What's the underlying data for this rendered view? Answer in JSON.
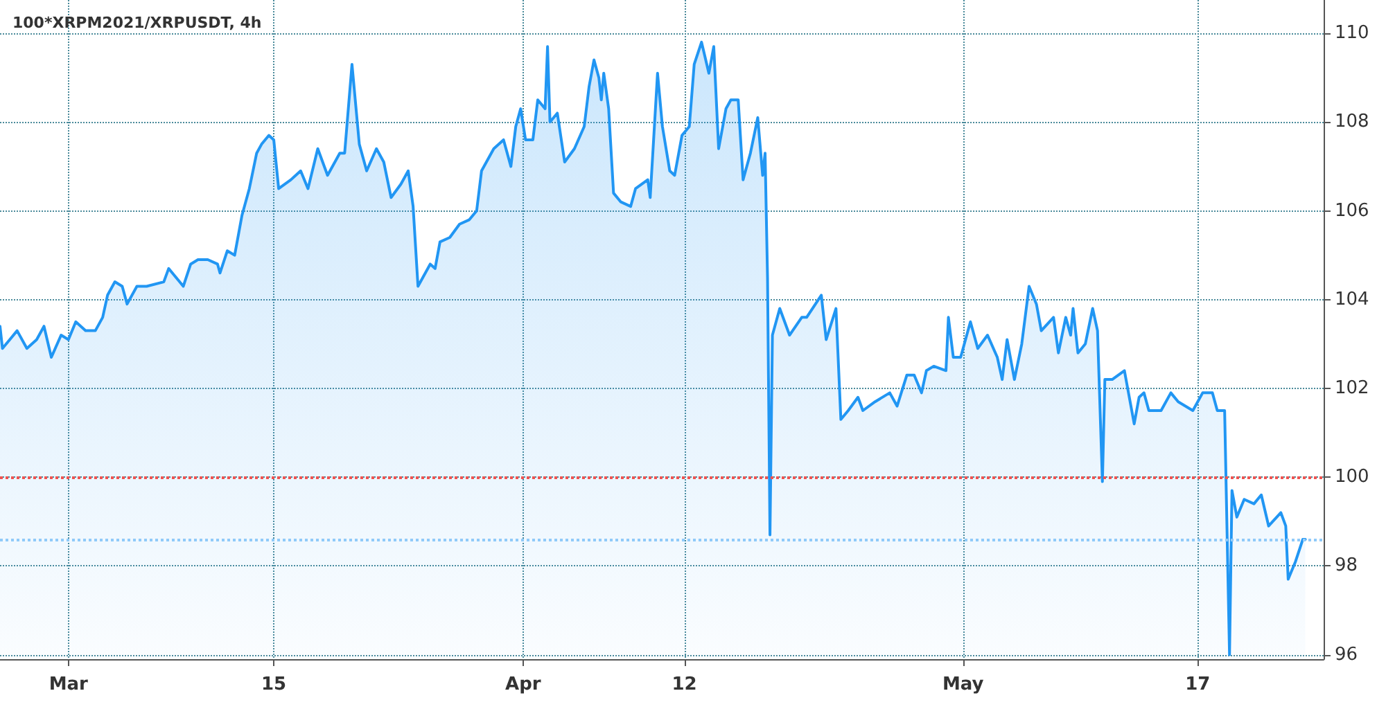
{
  "chart_data": {
    "type": "area",
    "title": "100*XRPM2021/XRPUSDT, 4h",
    "x": [
      "2021-02-24T08:00",
      "2021-02-24T12:00",
      "2021-02-25T00:00",
      "2021-02-25T12:00",
      "2021-02-26T04:00",
      "2021-02-26T20:00",
      "2021-02-27T08:00",
      "2021-02-27T20:00",
      "2021-02-28T12:00",
      "2021-03-01T00:00",
      "2021-03-01T12:00",
      "2021-03-02T04:00",
      "2021-03-02T20:00",
      "2021-03-03T08:00",
      "2021-03-03T16:00",
      "2021-03-04T04:00",
      "2021-03-04T16:00",
      "2021-03-05T00:00",
      "2021-03-05T16:00",
      "2021-03-06T08:00",
      "2021-03-07T12:00",
      "2021-03-07T20:00",
      "2021-03-08T20:00",
      "2021-03-09T08:00",
      "2021-03-09T20:00",
      "2021-03-10T12:00",
      "2021-03-11T04:00",
      "2021-03-11T08:00",
      "2021-03-11T20:00",
      "2021-03-12T08:00",
      "2021-03-12T20:00",
      "2021-03-13T08:00",
      "2021-03-13T20:00",
      "2021-03-14T04:00",
      "2021-03-14T16:00",
      "2021-03-15T00:00",
      "2021-03-15T08:00",
      "2021-03-16T04:00",
      "2021-03-16T20:00",
      "2021-03-17T08:00",
      "2021-03-18T00:00",
      "2021-03-18T16:00",
      "2021-03-19T12:00",
      "2021-03-19T20:00",
      "2021-03-20T08:00",
      "2021-03-20T20:00",
      "2021-03-21T08:00",
      "2021-03-22T00:00",
      "2021-03-22T12:00",
      "2021-03-23T00:00",
      "2021-03-23T16:00",
      "2021-03-24T04:00",
      "2021-03-24T12:00",
      "2021-03-24T20:00",
      "2021-03-25T16:00",
      "2021-03-26T00:00",
      "2021-03-26T08:00",
      "2021-03-27T00:00",
      "2021-03-27T16:00",
      "2021-03-28T08:00",
      "2021-03-28T20:00",
      "2021-03-29T04:00",
      "2021-03-30T00:00",
      "2021-03-30T16:00",
      "2021-03-31T04:00",
      "2021-03-31T12:00",
      "2021-03-31T20:00",
      "2021-04-01T04:00",
      "2021-04-01T16:00",
      "2021-04-02T00:00",
      "2021-04-02T12:00",
      "2021-04-02T16:00",
      "2021-04-02T20:00",
      "2021-04-03T08:00",
      "2021-04-03T20:00",
      "2021-04-04T12:00",
      "2021-04-05T04:00",
      "2021-04-05T12:00",
      "2021-04-05T20:00",
      "2021-04-06T04:00",
      "2021-04-06T08:00",
      "2021-04-06T12:00",
      "2021-04-06T20:00",
      "2021-04-07T04:00",
      "2021-04-07T16:00",
      "2021-04-08T08:00",
      "2021-04-08T16:00",
      "2021-04-09T12:00",
      "2021-04-09T16:00",
      "2021-04-10T04:00",
      "2021-04-10T12:00",
      "2021-04-11T00:00",
      "2021-04-11T08:00",
      "2021-04-11T20:00",
      "2021-04-12T08:00",
      "2021-04-12T16:00",
      "2021-04-13T04:00",
      "2021-04-13T16:00",
      "2021-04-14T00:00",
      "2021-04-14T08:00",
      "2021-04-14T20:00",
      "2021-04-15T04:00",
      "2021-04-15T16:00",
      "2021-04-16T00:00",
      "2021-04-16T12:00",
      "2021-04-17T00:00",
      "2021-04-17T08:00",
      "2021-04-17T12:00",
      "2021-04-17T16:00",
      "2021-04-17T20:00",
      "2021-04-18T00:00",
      "2021-04-18T12:00",
      "2021-04-19T04:00",
      "2021-04-20T00:00",
      "2021-04-20T08:00",
      "2021-04-21T08:00",
      "2021-04-21T16:00",
      "2021-04-22T08:00",
      "2021-04-22T16:00",
      "2021-04-23T04:00",
      "2021-04-23T20:00",
      "2021-04-24T04:00",
      "2021-04-25T00:00",
      "2021-04-26T00:00",
      "2021-04-26T12:00",
      "2021-04-27T04:00",
      "2021-04-27T16:00",
      "2021-04-28T04:00",
      "2021-04-28T12:00",
      "2021-04-29T00:00",
      "2021-04-29T20:00",
      "2021-04-30T00:00",
      "2021-04-30T08:00",
      "2021-04-30T20:00",
      "2021-05-01T12:00",
      "2021-05-02T00:00",
      "2021-05-02T16:00",
      "2021-05-03T08:00",
      "2021-05-03T16:00",
      "2021-05-04T00:00",
      "2021-05-04T12:00",
      "2021-05-05T00:00",
      "2021-05-05T12:00",
      "2021-05-06T00:00",
      "2021-05-06T08:00",
      "2021-05-07T04:00",
      "2021-05-07T12:00",
      "2021-05-08T00:00",
      "2021-05-08T08:00",
      "2021-05-08T12:00",
      "2021-05-08T20:00",
      "2021-05-09T08:00",
      "2021-05-09T20:00",
      "2021-05-10T04:00",
      "2021-05-10T12:00",
      "2021-05-10T16:00",
      "2021-05-11T04:00",
      "2021-05-12T00:00",
      "2021-05-12T16:00",
      "2021-05-13T00:00",
      "2021-05-13T08:00",
      "2021-05-13T16:00",
      "2021-05-14T12:00",
      "2021-05-15T04:00",
      "2021-05-15T16:00",
      "2021-05-16T16:00",
      "2021-05-17T08:00",
      "2021-05-18T00:00",
      "2021-05-18T08:00",
      "2021-05-18T20:00",
      "2021-05-19T04:00",
      "2021-05-19T08:00",
      "2021-05-19T16:00",
      "2021-05-20T04:00",
      "2021-05-20T20:00",
      "2021-05-21T08:00",
      "2021-05-21T20:00",
      "2021-05-22T16:00",
      "2021-05-23T00:00",
      "2021-05-23T04:00",
      "2021-05-23T16:00",
      "2021-05-24T04:00",
      "2021-05-24T08:00"
    ],
    "series": [
      {
        "color": "#2196f3",
        "values": [
          103.4,
          102.9,
          103.1,
          103.3,
          102.9,
          103.1,
          103.4,
          102.7,
          103.2,
          103.1,
          103.5,
          103.3,
          103.3,
          103.6,
          104.1,
          104.4,
          104.3,
          103.9,
          104.3,
          104.3,
          104.4,
          104.7,
          104.3,
          104.8,
          104.9,
          104.9,
          104.8,
          104.6,
          105.1,
          105.0,
          105.9,
          106.5,
          107.3,
          107.5,
          107.7,
          107.6,
          106.5,
          106.7,
          106.9,
          106.5,
          107.4,
          106.8,
          107.3,
          107.3,
          109.3,
          107.5,
          106.9,
          107.4,
          107.1,
          106.3,
          106.6,
          106.9,
          106.1,
          104.3,
          104.8,
          104.7,
          105.3,
          105.4,
          105.7,
          105.8,
          106.0,
          106.9,
          107.4,
          107.6,
          107.0,
          107.9,
          108.3,
          107.6,
          107.6,
          108.5,
          108.3,
          109.7,
          108.0,
          108.2,
          107.1,
          107.4,
          107.9,
          108.8,
          109.4,
          109.0,
          108.5,
          109.1,
          108.3,
          106.4,
          106.2,
          106.1,
          106.5,
          106.7,
          106.3,
          109.1,
          107.9,
          106.9,
          106.8,
          107.7,
          107.9,
          109.3,
          109.8,
          109.1,
          109.7,
          107.4,
          108.3,
          108.5,
          108.5,
          106.7,
          107.3,
          108.1,
          106.8,
          107.3,
          104.5,
          98.7,
          103.2,
          103.8,
          103.2,
          103.6,
          103.6,
          104.1,
          103.1,
          103.8,
          101.3,
          101.5,
          101.8,
          101.5,
          101.7,
          101.9,
          101.6,
          102.3,
          102.3,
          101.9,
          102.4,
          102.5,
          102.4,
          103.6,
          102.7,
          102.7,
          103.5,
          102.9,
          103.2,
          102.7,
          102.2,
          103.1,
          102.2,
          103.0,
          104.3,
          103.9,
          103.3,
          103.6,
          102.8,
          103.6,
          103.2,
          103.8,
          102.8,
          103.0,
          103.8,
          103.3,
          99.9,
          102.2,
          102.2,
          102.4,
          101.2,
          101.8,
          101.9,
          101.5,
          101.5,
          101.9,
          101.7,
          101.5,
          101.9,
          101.9,
          101.5,
          101.5,
          96.0,
          99.7,
          99.1,
          99.5,
          99.4,
          99.6,
          98.9,
          99.2,
          98.9,
          97.7,
          98.1,
          98.6,
          98.6
        ]
      }
    ],
    "xlim": [
      "2021-02-24T08:00",
      "2021-05-25T14:00"
    ],
    "xticks": [
      {
        "value": "2021-03-01",
        "label": "Mar"
      },
      {
        "value": "2021-03-15",
        "label": "15"
      },
      {
        "value": "2021-04-01",
        "label": "Apr"
      },
      {
        "value": "2021-04-12",
        "label": "12"
      },
      {
        "value": "2021-05-01",
        "label": "May"
      },
      {
        "value": "2021-05-17",
        "label": "17"
      }
    ],
    "ylim": [
      95.9,
      110.75
    ],
    "yticks": [
      96,
      98,
      100,
      102,
      104,
      106,
      108,
      110
    ],
    "ref_lines": [
      {
        "axis": "y",
        "value": 100,
        "color": "#ef5350",
        "line_style": "dotted"
      },
      {
        "axis": "y",
        "value": 98.6,
        "color": "#90caf9",
        "line_style": "dotted"
      }
    ],
    "grid": true,
    "marker": "none",
    "line_style": "solid"
  }
}
